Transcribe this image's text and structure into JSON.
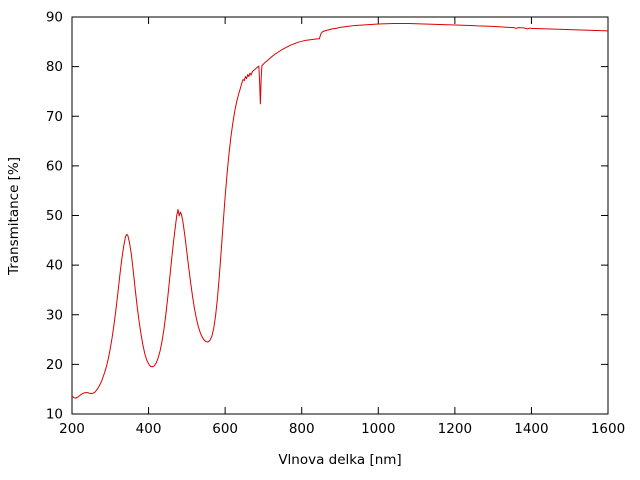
{
  "chart_data": {
    "type": "line",
    "title": "",
    "xlabel": "Vlnova delka [nm]",
    "ylabel": "Transmitance [%]",
    "xlim": [
      200,
      1600
    ],
    "ylim": [
      10,
      90
    ],
    "xticks": [
      200,
      400,
      600,
      800,
      1000,
      1200,
      1400,
      1600
    ],
    "yticks": [
      10,
      20,
      30,
      40,
      50,
      60,
      70,
      80,
      90
    ],
    "grid": false,
    "legend_position": "none",
    "line_color": "#dd0000",
    "frame_color": "#000000",
    "background_color": "#ffffff",
    "series": [
      {
        "name": "transmittance-spectrum",
        "points": [
          [
            200,
            13.6
          ],
          [
            205,
            13.3
          ],
          [
            210,
            13.2
          ],
          [
            215,
            13.4
          ],
          [
            220,
            13.7
          ],
          [
            225,
            14.0
          ],
          [
            230,
            14.2
          ],
          [
            235,
            14.3
          ],
          [
            240,
            14.3
          ],
          [
            245,
            14.2
          ],
          [
            250,
            14.1
          ],
          [
            255,
            14.2
          ],
          [
            260,
            14.4
          ],
          [
            265,
            14.9
          ],
          [
            270,
            15.5
          ],
          [
            275,
            16.2
          ],
          [
            280,
            17.2
          ],
          [
            285,
            18.3
          ],
          [
            290,
            19.6
          ],
          [
            295,
            21.2
          ],
          [
            300,
            23.2
          ],
          [
            305,
            25.5
          ],
          [
            310,
            28.2
          ],
          [
            315,
            31.2
          ],
          [
            320,
            34.5
          ],
          [
            325,
            38.0
          ],
          [
            330,
            41.2
          ],
          [
            335,
            43.8
          ],
          [
            340,
            45.8
          ],
          [
            343,
            46.2
          ],
          [
            346,
            45.9
          ],
          [
            350,
            44.6
          ],
          [
            355,
            42.2
          ],
          [
            360,
            38.8
          ],
          [
            365,
            35.2
          ],
          [
            370,
            31.8
          ],
          [
            375,
            28.8
          ],
          [
            380,
            26.2
          ],
          [
            385,
            24.0
          ],
          [
            390,
            22.2
          ],
          [
            395,
            20.9
          ],
          [
            400,
            20.1
          ],
          [
            405,
            19.6
          ],
          [
            410,
            19.5
          ],
          [
            415,
            19.7
          ],
          [
            420,
            20.3
          ],
          [
            425,
            21.3
          ],
          [
            430,
            22.7
          ],
          [
            435,
            24.6
          ],
          [
            440,
            27.0
          ],
          [
            445,
            30.0
          ],
          [
            450,
            33.4
          ],
          [
            455,
            37.2
          ],
          [
            460,
            41.0
          ],
          [
            465,
            44.6
          ],
          [
            470,
            47.8
          ],
          [
            474,
            50.2
          ],
          [
            477,
            51.2
          ],
          [
            480,
            49.9
          ],
          [
            483,
            50.7
          ],
          [
            486,
            50.2
          ],
          [
            490,
            48.6
          ],
          [
            495,
            45.8
          ],
          [
            500,
            42.6
          ],
          [
            505,
            39.4
          ],
          [
            510,
            36.4
          ],
          [
            515,
            33.6
          ],
          [
            520,
            31.2
          ],
          [
            525,
            29.2
          ],
          [
            530,
            27.6
          ],
          [
            535,
            26.4
          ],
          [
            540,
            25.5
          ],
          [
            545,
            24.9
          ],
          [
            550,
            24.6
          ],
          [
            555,
            24.5
          ],
          [
            560,
            24.8
          ],
          [
            565,
            25.6
          ],
          [
            570,
            27.2
          ],
          [
            575,
            29.8
          ],
          [
            580,
            33.4
          ],
          [
            585,
            38.0
          ],
          [
            590,
            43.2
          ],
          [
            595,
            48.6
          ],
          [
            600,
            53.8
          ],
          [
            605,
            58.4
          ],
          [
            610,
            62.4
          ],
          [
            615,
            65.8
          ],
          [
            620,
            68.6
          ],
          [
            625,
            71.0
          ],
          [
            630,
            72.9
          ],
          [
            635,
            74.4
          ],
          [
            640,
            75.7
          ],
          [
            644,
            76.8
          ],
          [
            647,
            77.4
          ],
          [
            650,
            77.2
          ],
          [
            653,
            78.0
          ],
          [
            656,
            77.6
          ],
          [
            659,
            78.4
          ],
          [
            662,
            78.0
          ],
          [
            665,
            78.7
          ],
          [
            668,
            78.3
          ],
          [
            671,
            79.0
          ],
          [
            674,
            79.2
          ],
          [
            677,
            79.4
          ],
          [
            680,
            79.6
          ],
          [
            683,
            79.8
          ],
          [
            686,
            80.0
          ],
          [
            688,
            80.1
          ],
          [
            690,
            77.0
          ],
          [
            692,
            72.5
          ],
          [
            694,
            77.5
          ],
          [
            696,
            80.2
          ],
          [
            700,
            80.5
          ],
          [
            705,
            80.9
          ],
          [
            710,
            81.2
          ],
          [
            720,
            81.9
          ],
          [
            730,
            82.5
          ],
          [
            740,
            83.0
          ],
          [
            750,
            83.5
          ],
          [
            760,
            83.9
          ],
          [
            770,
            84.3
          ],
          [
            780,
            84.6
          ],
          [
            790,
            84.9
          ],
          [
            800,
            85.1
          ],
          [
            810,
            85.3
          ],
          [
            820,
            85.4
          ],
          [
            830,
            85.5
          ],
          [
            840,
            85.6
          ],
          [
            846,
            85.6
          ],
          [
            850,
            86.6
          ],
          [
            854,
            87.0
          ],
          [
            860,
            87.2
          ],
          [
            870,
            87.4
          ],
          [
            880,
            87.6
          ],
          [
            890,
            87.7
          ],
          [
            900,
            87.9
          ],
          [
            920,
            88.1
          ],
          [
            940,
            88.3
          ],
          [
            960,
            88.4
          ],
          [
            980,
            88.5
          ],
          [
            1000,
            88.6
          ],
          [
            1020,
            88.65
          ],
          [
            1040,
            88.7
          ],
          [
            1060,
            88.7
          ],
          [
            1080,
            88.7
          ],
          [
            1100,
            88.65
          ],
          [
            1120,
            88.6
          ],
          [
            1140,
            88.55
          ],
          [
            1160,
            88.5
          ],
          [
            1180,
            88.45
          ],
          [
            1200,
            88.4
          ],
          [
            1220,
            88.35
          ],
          [
            1240,
            88.3
          ],
          [
            1260,
            88.2
          ],
          [
            1280,
            88.15
          ],
          [
            1300,
            88.1
          ],
          [
            1320,
            88.0
          ],
          [
            1340,
            87.9
          ],
          [
            1355,
            87.85
          ],
          [
            1360,
            87.7
          ],
          [
            1365,
            87.85
          ],
          [
            1380,
            87.8
          ],
          [
            1390,
            87.6
          ],
          [
            1395,
            87.75
          ],
          [
            1400,
            87.7
          ],
          [
            1420,
            87.65
          ],
          [
            1440,
            87.6
          ],
          [
            1460,
            87.55
          ],
          [
            1480,
            87.5
          ],
          [
            1500,
            87.45
          ],
          [
            1520,
            87.4
          ],
          [
            1540,
            87.35
          ],
          [
            1560,
            87.3
          ],
          [
            1580,
            87.25
          ],
          [
            1600,
            87.2
          ]
        ]
      }
    ]
  }
}
